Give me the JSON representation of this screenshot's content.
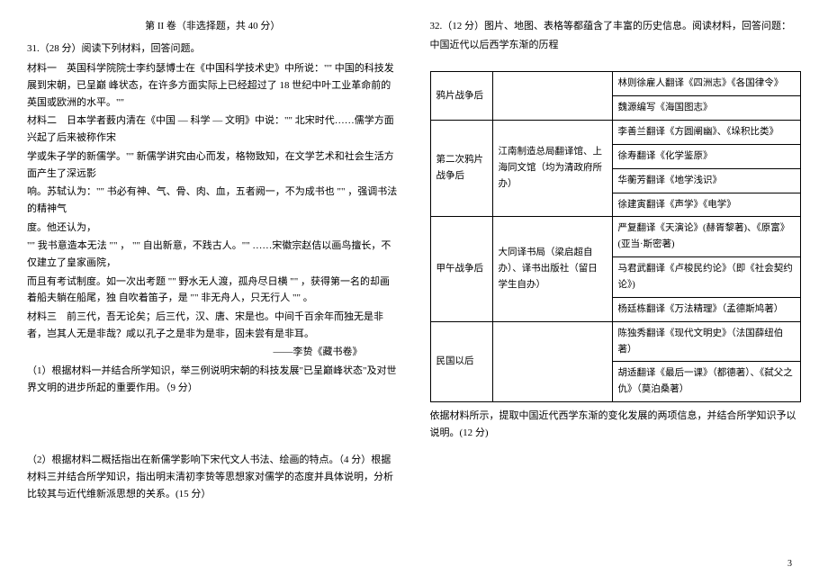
{
  "left": {
    "section_title": "第 II 卷（非选择题，共 40 分）",
    "q31_head": "31.（28 分）阅读下列材料，回答问题。",
    "m1": "材料一　英国科学院院士李约瑟博士在《中国科学技术史》中所说：\"\" 中国的科技发展到宋朝，已呈巅 峰状态，在许多方面实际上已经超过了 18 世纪中叶工业革命前的英国或欧洲的水平。\"\"",
    "m2a": "材料二　日本学者薮内清在《中国 — 科学 — 文明》中说：\"\" 北宋时代……儒学方面兴起了后来被称作宋",
    "m2b": "学或朱子学的新儒学。\"\" 新儒学讲究由心而发，格物致知，在文学艺术和社会生活方面产生了深远影",
    "m2c": "响。苏轼认为：\"\" 书必有神、气、骨、肉、血，五者阙一，不为成书也 \"\" ，强调书法的精神气",
    "m2d": "度。他还认为，",
    "m2e": "\"\" 我书意造本无法 \"\" ， \"\" 自出新意，不践古人。\"\" ……宋徽宗赵佶以画鸟擅长，不仅建立了皇家画院，",
    "m2f": "而且有考试制度。如一次出考题 \"\" 野水无人渡，孤舟尽日横 \"\" ，获得第一名的却画着船夫躺在船尾，独 自吹着笛子，是 \"\" 非无舟人，只无行人 \"\" 。",
    "m3a": "材料三　前三代，吾无论矣；后三代，汉、唐、宋是也。中间千百余年而独无是非者，岂其人无是非哉？咸以孔子之是非为是非，固未尝有是非耳。",
    "m3b": "——李贽《藏书卷》",
    "q1": "（1）根据材料一并结合所学知识，举三例说明宋朝的科技发展\"已呈巅峰状态\"及对世界文明的进步所起的重要作用。（9 分）",
    "q2": "（2）根据材料二概括指出在新儒学影响下宋代文人书法、绘画的特点。（4 分）根据材料三并结合所学知识，指出明末清初李贽等思想家对儒学的态度并具体说明，分析比较其与近代维新派思想的关系。(15 分）"
  },
  "right": {
    "q32_head": "32.（12 分）图片、地图、表格等都蕴含了丰富的历史信息。阅读材料，回答问题：",
    "q32_sub": "中国近代以后西学东渐的历程",
    "table": {
      "rows": [
        {
          "c1": "鸦片战争后",
          "c1rs": 2,
          "c2": "",
          "c2rs": 2,
          "c3": "林则徐雇人翻译《四洲志》《各国律令》"
        },
        {
          "c3": "魏源编写《海国图志》"
        },
        {
          "c1": "第二次鸦片战争后",
          "c1rs": 4,
          "c2": "江南制造总局翻译馆、上海同文馆（均为清政府所办）",
          "c2rs": 4,
          "c3": "李善兰翻译《方圆阐幽》、《垛积比类》"
        },
        {
          "c3": "徐寿翻译《化学鉴原》"
        },
        {
          "c3": "华蘅芳翻译《地学浅识》"
        },
        {
          "c3": "徐建寅翻译《声学》《电学》"
        },
        {
          "c1": "甲午战争后",
          "c1rs": 3,
          "c2": "大同译书局（梁启超自办）、译书出版社（留日学生自办）",
          "c2rs": 3,
          "c3": "严复翻译《天演论》(赫胥黎著)、《原富》(亚当·斯密著)"
        },
        {
          "c3": "马君武翻译《卢梭民约论》（即《社会契约论》)"
        },
        {
          "c3": "杨廷栋翻译《万法精理》（孟德斯鸠著）"
        },
        {
          "c1": "民国以后",
          "c1rs": 2,
          "c2": "",
          "c2rs": 2,
          "c3": "陈独秀翻译《现代文明史》（法国薛纽伯著）"
        },
        {
          "c3": "胡适翻译《最后一课》（都德著）、《弑父之仇》（莫泊桑著）"
        }
      ]
    },
    "note": "依据材料所示，提取中国近代西学东渐的变化发展的两项信息，并结合所学知识予以说明。(12 分)"
  },
  "page_num": "3"
}
